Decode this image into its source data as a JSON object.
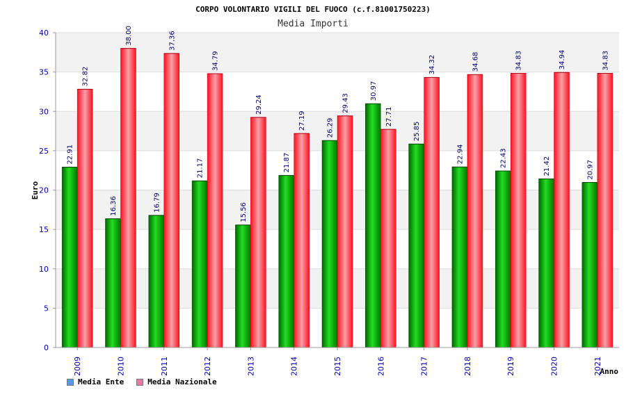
{
  "chart_data": {
    "type": "bar",
    "title": "CORPO VOLONTARIO VIGILI DEL FUOCO (c.f.81001750223)",
    "subtitle": "Media Importi",
    "xlabel": "Anno",
    "ylabel": "Euro",
    "ylim": [
      0,
      40
    ],
    "yticks": [
      0,
      5,
      10,
      15,
      20,
      25,
      30,
      35,
      40
    ],
    "categories": [
      "2009",
      "2010",
      "2011",
      "2012",
      "2013",
      "2014",
      "2015",
      "2016",
      "2017",
      "2018",
      "2019",
      "2020",
      "2021"
    ],
    "series": [
      {
        "name": "Media Ente",
        "color": "#00c000",
        "values": [
          22.91,
          16.36,
          16.79,
          21.17,
          15.56,
          21.87,
          26.29,
          30.97,
          25.85,
          22.94,
          22.43,
          21.42,
          20.97
        ],
        "labels": [
          "22.91",
          "16.36",
          "16.79",
          "21.17",
          "15.56",
          "21.87",
          "26.29",
          "30.97",
          "25.85",
          "22.94",
          "22.43",
          "21.42",
          "20.97"
        ]
      },
      {
        "name": "Media Nazionale",
        "color": "#ff2030",
        "values": [
          32.82,
          38.0,
          37.36,
          34.79,
          29.24,
          27.19,
          29.43,
          27.71,
          34.32,
          34.68,
          34.83,
          34.94,
          34.83
        ],
        "labels": [
          "32.82",
          "38.00",
          "37.36",
          "34.79",
          "29.24",
          "27.19",
          "29.43",
          "27.71",
          "34.32",
          "34.68",
          "34.83",
          "34.94",
          "34.83"
        ]
      }
    ],
    "legend": [
      {
        "label": "Media Ente",
        "color": "#5599ee"
      },
      {
        "label": "Media Nazionale",
        "color": "#e37aa8"
      }
    ],
    "legend_position": "bottom-left"
  }
}
